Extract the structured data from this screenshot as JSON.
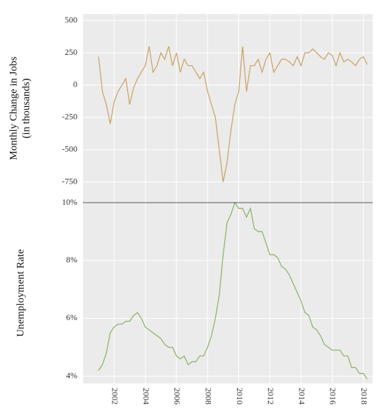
{
  "chart_data": [
    {
      "type": "line",
      "ylabel": [
        "Monthly Change in Jobs",
        "(in thousands)"
      ],
      "x": [
        2001.0,
        2001.25,
        2001.5,
        2001.75,
        2002.0,
        2002.25,
        2002.5,
        2002.75,
        2003.0,
        2003.25,
        2003.5,
        2003.75,
        2004.0,
        2004.25,
        2004.5,
        2004.75,
        2005.0,
        2005.25,
        2005.5,
        2005.75,
        2006.0,
        2006.25,
        2006.5,
        2006.75,
        2007.0,
        2007.25,
        2007.5,
        2007.75,
        2008.0,
        2008.25,
        2008.5,
        2008.75,
        2009.0,
        2009.25,
        2009.5,
        2009.75,
        2010.0,
        2010.25,
        2010.5,
        2010.75,
        2011.0,
        2011.25,
        2011.5,
        2011.75,
        2012.0,
        2012.25,
        2012.5,
        2012.75,
        2013.0,
        2013.25,
        2013.5,
        2013.75,
        2014.0,
        2014.25,
        2014.5,
        2014.75,
        2015.0,
        2015.25,
        2015.5,
        2015.75,
        2016.0,
        2016.25,
        2016.5,
        2016.75,
        2017.0,
        2017.25,
        2017.5,
        2017.75,
        2018.0,
        2018.25
      ],
      "series": [
        {
          "name": "Monthly Change in Jobs",
          "color": "#c9a05a",
          "values": [
            220,
            -50,
            -150,
            -300,
            -130,
            -50,
            0,
            50,
            -150,
            -20,
            50,
            100,
            150,
            300,
            100,
            150,
            250,
            200,
            300,
            150,
            250,
            100,
            200,
            150,
            150,
            100,
            50,
            100,
            -50,
            -150,
            -250,
            -500,
            -750,
            -600,
            -350,
            -150,
            -50,
            300,
            -50,
            150,
            150,
            200,
            100,
            200,
            250,
            100,
            150,
            200,
            200,
            180,
            150,
            220,
            150,
            250,
            250,
            280,
            250,
            220,
            200,
            250,
            230,
            150,
            250,
            180,
            200,
            180,
            150,
            200,
            220,
            160
          ]
        }
      ],
      "xlim": [
        2000.0,
        2018.6
      ],
      "xticks": [
        2002,
        2004,
        2006,
        2008,
        2010,
        2012,
        2014,
        2016,
        2018
      ],
      "ylim": [
        -910,
        550
      ],
      "yticks": [
        500,
        250,
        0,
        -250,
        -500,
        -750
      ],
      "grid": true
    },
    {
      "type": "line",
      "ylabel": "Unemployment Rate",
      "x": [
        2001.0,
        2001.25,
        2001.5,
        2001.75,
        2002.0,
        2002.25,
        2002.5,
        2002.75,
        2003.0,
        2003.25,
        2003.5,
        2003.75,
        2004.0,
        2004.25,
        2004.5,
        2004.75,
        2005.0,
        2005.25,
        2005.5,
        2005.75,
        2006.0,
        2006.25,
        2006.5,
        2006.75,
        2007.0,
        2007.25,
        2007.5,
        2007.75,
        2008.0,
        2008.25,
        2008.5,
        2008.75,
        2009.0,
        2009.25,
        2009.5,
        2009.75,
        2010.0,
        2010.25,
        2010.5,
        2010.75,
        2011.0,
        2011.25,
        2011.5,
        2011.75,
        2012.0,
        2012.25,
        2012.5,
        2012.75,
        2013.0,
        2013.25,
        2013.5,
        2013.75,
        2014.0,
        2014.25,
        2014.5,
        2014.75,
        2015.0,
        2015.25,
        2015.5,
        2015.75,
        2016.0,
        2016.25,
        2016.5,
        2016.75,
        2017.0,
        2017.25,
        2017.5,
        2017.75,
        2018.0,
        2018.25
      ],
      "series": [
        {
          "name": "Unemployment Rate",
          "color": "#88b05e",
          "values": [
            4.2,
            4.4,
            4.8,
            5.5,
            5.7,
            5.8,
            5.8,
            5.9,
            5.9,
            6.1,
            6.2,
            6.0,
            5.7,
            5.6,
            5.5,
            5.4,
            5.3,
            5.1,
            5.0,
            5.0,
            4.7,
            4.6,
            4.7,
            4.4,
            4.5,
            4.5,
            4.7,
            4.7,
            5.0,
            5.4,
            6.0,
            6.8,
            8.2,
            9.3,
            9.6,
            10.0,
            9.8,
            9.8,
            9.5,
            9.8,
            9.1,
            9.0,
            9.0,
            8.6,
            8.2,
            8.2,
            8.1,
            7.8,
            7.7,
            7.5,
            7.2,
            6.9,
            6.6,
            6.2,
            6.1,
            5.7,
            5.6,
            5.4,
            5.1,
            5.0,
            4.9,
            4.9,
            4.9,
            4.7,
            4.7,
            4.3,
            4.3,
            4.1,
            4.1,
            3.9
          ]
        }
      ],
      "xlim": [
        2000.0,
        2018.6
      ],
      "xticks": [
        2002,
        2004,
        2006,
        2008,
        2010,
        2012,
        2014,
        2016,
        2018
      ],
      "ylim": [
        3.75,
        10
      ],
      "yticks": [
        {
          "value": 10,
          "label": "10%"
        },
        {
          "value": 8,
          "label": "8%"
        },
        {
          "value": 6,
          "label": "6%"
        },
        {
          "value": 4,
          "label": "4%"
        }
      ],
      "grid": true
    }
  ]
}
